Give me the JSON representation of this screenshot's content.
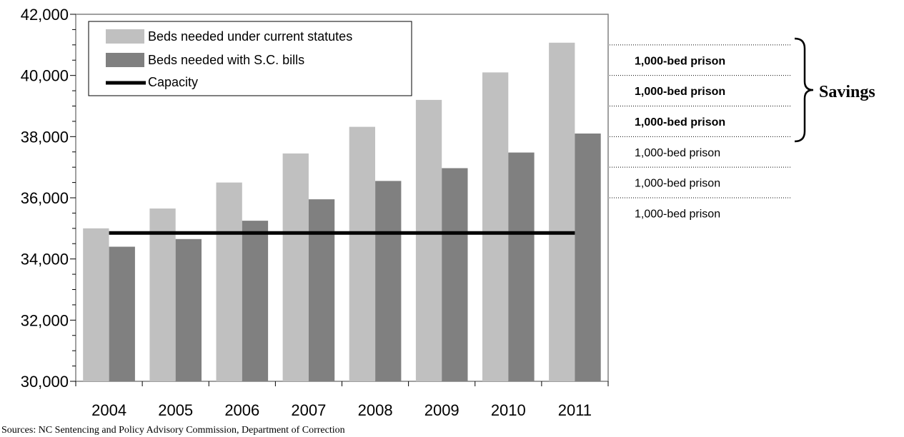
{
  "chart_data": {
    "type": "bar",
    "categories": [
      "2004",
      "2005",
      "2006",
      "2007",
      "2008",
      "2009",
      "2010",
      "2011"
    ],
    "series": [
      {
        "name": "Beds needed under current statutes",
        "kind": "bar",
        "color": "#c0c0c0",
        "values": [
          35000,
          35650,
          36500,
          37450,
          38320,
          39200,
          40100,
          41070
        ]
      },
      {
        "name": "Beds needed with S.C. bills",
        "kind": "bar",
        "color": "#808080",
        "values": [
          34400,
          34650,
          35250,
          35950,
          36550,
          36970,
          37480,
          38100
        ]
      },
      {
        "name": "Capacity",
        "kind": "line",
        "color": "#000000",
        "values": [
          34850,
          34850,
          34850,
          34850,
          34850,
          34850,
          34850,
          34850
        ]
      }
    ],
    "ylim": [
      30000,
      42000
    ],
    "y_ticks": [
      30000,
      32000,
      34000,
      36000,
      38000,
      40000,
      42000
    ],
    "y_tick_labels": [
      "30,000",
      "32,000",
      "34,000",
      "36,000",
      "38,000",
      "40,000",
      "42,000"
    ],
    "legend_position": "top-left",
    "title": "",
    "xlabel": "",
    "ylabel": "",
    "annotations": {
      "prison_bands": [
        {
          "label": "1,000-bed prison",
          "bold": true,
          "from": 40000,
          "to": 41000
        },
        {
          "label": "1,000-bed prison",
          "bold": true,
          "from": 39000,
          "to": 40000
        },
        {
          "label": "1,000-bed prison",
          "bold": true,
          "from": 38000,
          "to": 39000
        },
        {
          "label": "1,000-bed prison",
          "bold": false,
          "from": 37000,
          "to": 38000
        },
        {
          "label": "1,000-bed prison",
          "bold": false,
          "from": 36000,
          "to": 37000
        },
        {
          "label": "1,000-bed prison",
          "bold": false,
          "from": 35000,
          "to": 36000
        }
      ],
      "savings_label": "Savings"
    },
    "source": "Sources:  NC Sentencing and Policy Advisory Commission, Department of Correction"
  }
}
